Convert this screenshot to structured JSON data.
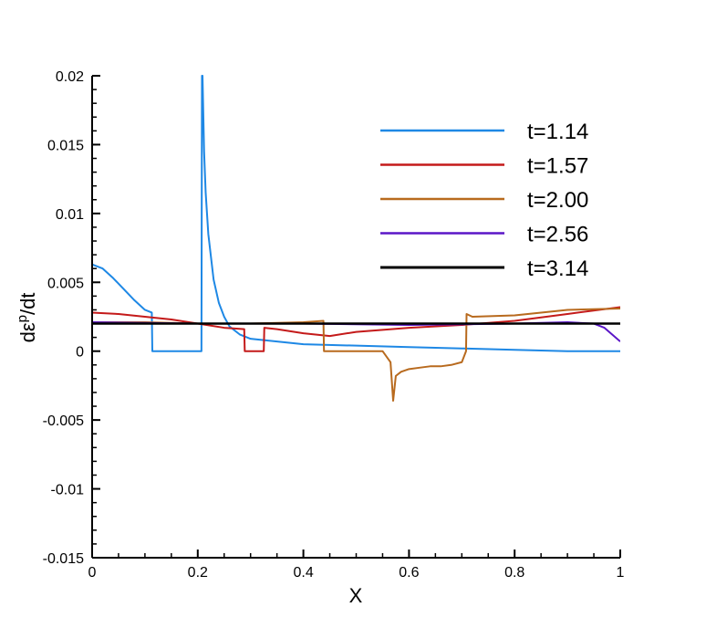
{
  "chart_data": {
    "type": "line",
    "title": "",
    "xlabel": "X",
    "ylabel": "dε^p/dt",
    "ylabel_parts": {
      "base": "dε",
      "sup": "p",
      "tail": "/dt"
    },
    "xlim": [
      0,
      1
    ],
    "ylim": [
      -0.015,
      0.02
    ],
    "x_ticks": [
      0,
      0.2,
      0.4,
      0.6,
      0.8,
      1
    ],
    "x_tick_labels": [
      "0",
      "0.2",
      "0.4",
      "0.6",
      "0.8",
      "1"
    ],
    "y_ticks": [
      -0.015,
      -0.01,
      -0.005,
      0,
      0.005,
      0.01,
      0.015,
      0.02
    ],
    "y_tick_labels": [
      "-0.015",
      "-0.01",
      "-0.005",
      "0",
      "0.005",
      "0.01",
      "0.015",
      "0.02"
    ],
    "grid": false,
    "legend_position": "top-right",
    "series": [
      {
        "name": "t=1.14",
        "color": "#1e88e5",
        "x": [
          0,
          0.02,
          0.04,
          0.06,
          0.08,
          0.1,
          0.113,
          0.114,
          0.207,
          0.208,
          0.209,
          0.212,
          0.215,
          0.22,
          0.23,
          0.24,
          0.25,
          0.26,
          0.28,
          0.3,
          0.35,
          0.4,
          0.5,
          0.6,
          0.7,
          0.8,
          0.9,
          1.0
        ],
        "y": [
          0.0063,
          0.006,
          0.0053,
          0.0045,
          0.0037,
          0.003,
          0.0028,
          0.0,
          0.0,
          0.02,
          0.02,
          0.0145,
          0.0115,
          0.0085,
          0.0052,
          0.0035,
          0.0025,
          0.0018,
          0.0012,
          0.0009,
          0.0007,
          0.0005,
          0.0004,
          0.0003,
          0.0002,
          0.0001,
          0.0,
          0.0
        ]
      },
      {
        "name": "t=1.57",
        "color": "#c41a1a",
        "x": [
          0,
          0.05,
          0.1,
          0.15,
          0.2,
          0.25,
          0.288,
          0.289,
          0.325,
          0.326,
          0.35,
          0.4,
          0.45,
          0.5,
          0.6,
          0.7,
          0.8,
          0.9,
          1.0
        ],
        "y": [
          0.0028,
          0.0027,
          0.0025,
          0.0023,
          0.002,
          0.0017,
          0.0016,
          0.0,
          0.0,
          0.0017,
          0.0016,
          0.0013,
          0.0011,
          0.0014,
          0.0017,
          0.0019,
          0.0022,
          0.0027,
          0.0032
        ]
      },
      {
        "name": "t=2.00",
        "color": "#b86a1e",
        "x": [
          0,
          0.1,
          0.2,
          0.3,
          0.4,
          0.438,
          0.439,
          0.55,
          0.565,
          0.57,
          0.575,
          0.585,
          0.6,
          0.62,
          0.64,
          0.66,
          0.68,
          0.7,
          0.708,
          0.709,
          0.72,
          0.8,
          0.9,
          1.0
        ],
        "y": [
          0.0021,
          0.0021,
          0.002,
          0.002,
          0.0021,
          0.0022,
          0.0,
          0.0,
          -0.0008,
          -0.0036,
          -0.0018,
          -0.0015,
          -0.0013,
          -0.0012,
          -0.0011,
          -0.0011,
          -0.001,
          -0.0008,
          0.0,
          0.0027,
          0.0025,
          0.0026,
          0.003,
          0.0031
        ]
      },
      {
        "name": "t=2.56",
        "color": "#5b16c7",
        "x": [
          0,
          0.2,
          0.4,
          0.6,
          0.8,
          0.9,
          0.95,
          0.97,
          0.985,
          1.0
        ],
        "y": [
          0.0021,
          0.002,
          0.002,
          0.0019,
          0.002,
          0.0021,
          0.002,
          0.0017,
          0.0012,
          0.0007
        ]
      },
      {
        "name": "t=3.14",
        "color": "#000000",
        "x": [
          0,
          1
        ],
        "y": [
          0.002,
          0.002
        ]
      }
    ]
  }
}
